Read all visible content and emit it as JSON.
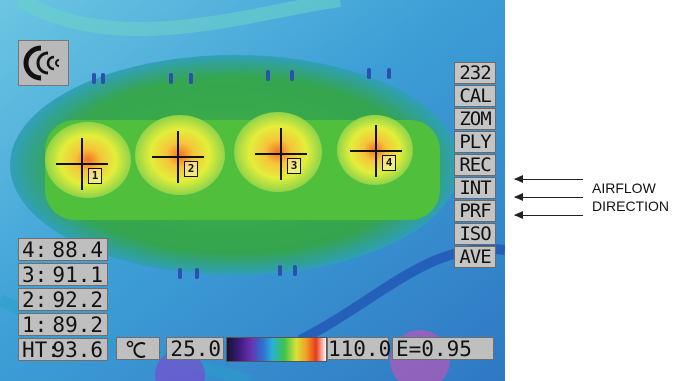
{
  "camera_icon": "camera-sound-icon",
  "menu": [
    "232",
    "CAL",
    "ZOM",
    "PLY",
    "REC",
    "INT",
    "PRF",
    "ISO",
    "AVE"
  ],
  "spots": [
    {
      "id": "1"
    },
    {
      "id": "2"
    },
    {
      "id": "3"
    },
    {
      "id": "4"
    }
  ],
  "readouts": [
    {
      "key": "4:",
      "value": "88.4"
    },
    {
      "key": "3:",
      "value": "91.1"
    },
    {
      "key": "2:",
      "value": "92.2"
    },
    {
      "key": "1:",
      "value": "89.2"
    },
    {
      "key": "HT:",
      "value": "93.6"
    }
  ],
  "scale": {
    "unit_icon": "celsius-icon",
    "unit_symbol": "°C",
    "min": "25.0",
    "max": "110.0",
    "emissivity": "E=0.95"
  },
  "annotation": {
    "line1": "AIRFLOW",
    "line2": "DIRECTION"
  },
  "colors": {
    "board_blue": "#2f8fcf",
    "hot_green": "#3aa843",
    "hot_yellow": "#e8ee3a",
    "hotspot": "#f07a22",
    "panel_gray": "#bfbfbf"
  }
}
